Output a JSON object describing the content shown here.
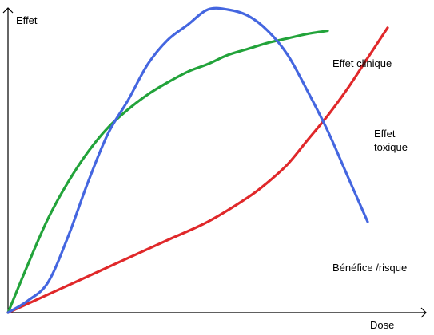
{
  "chart_data": {
    "type": "line",
    "title": "",
    "xlabel": "Dose",
    "ylabel": "Effet",
    "xlim": [
      0,
      100
    ],
    "ylim": [
      0,
      100
    ],
    "grid": false,
    "series": [
      {
        "name": "Effet clinique",
        "color": "#22a33a",
        "label_lines": [
          "Effet clinique"
        ],
        "x": [
          0,
          5,
          10,
          15,
          20,
          25,
          30,
          35,
          40,
          45,
          50,
          55,
          60,
          65,
          70,
          75,
          80
        ],
        "y": [
          0,
          16,
          31,
          43,
          53,
          61,
          67,
          72,
          76,
          79.5,
          82,
          85,
          87,
          89,
          90.5,
          92,
          93
        ]
      },
      {
        "name": "Effet toxique",
        "color": "#e0282a",
        "label_lines": [
          "Effet",
          "toxique"
        ],
        "x": [
          0,
          10,
          20,
          30,
          40,
          50,
          60,
          65,
          70,
          75,
          80,
          85,
          90,
          95
        ],
        "y": [
          0,
          6,
          12,
          18,
          24,
          30,
          38,
          43,
          49,
          57,
          65,
          74,
          84,
          94
        ]
      },
      {
        "name": "Bénéfice /risque",
        "color": "#4466e0",
        "label_lines": [
          "Bénéfice /risque"
        ],
        "x": [
          0,
          5,
          10,
          15,
          20,
          25,
          30,
          35,
          40,
          45,
          50,
          55,
          60,
          65,
          70,
          75,
          80,
          85,
          90
        ],
        "y": [
          0,
          4,
          10,
          25,
          43,
          59,
          70,
          82,
          90,
          95,
          100,
          100,
          98,
          93,
          85,
          73,
          60,
          45,
          30
        ]
      }
    ]
  }
}
